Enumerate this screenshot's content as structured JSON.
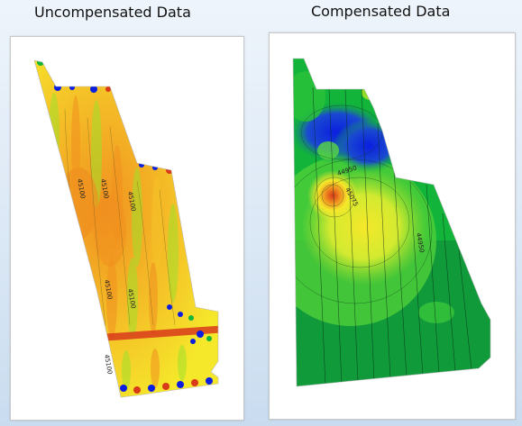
{
  "left_panel": {
    "title": "Uncompensated Data",
    "contour_labels": [
      "45100",
      "45100",
      "45100",
      "45100",
      "45100",
      "45100"
    ]
  },
  "right_panel": {
    "title": "Compensated Data",
    "contour_labels": [
      "44950",
      "45075",
      "44950"
    ]
  },
  "colors": {
    "low": "#0a1ee0",
    "mid_low": "#12b43a",
    "mid": "#9ee02a",
    "mid_high": "#f5e82a",
    "high": "#f09020",
    "peak": "#d83a1a"
  }
}
